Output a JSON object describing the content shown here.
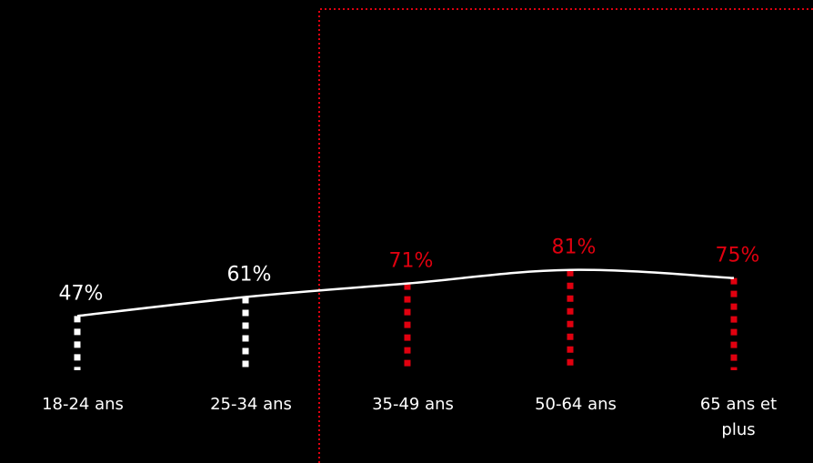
{
  "chart_data": {
    "type": "line",
    "categories": [
      "18-24 ans",
      "25-34 ans",
      "35-49 ans",
      "50-64 ans",
      "65 ans et plus"
    ],
    "category_lines": [
      [
        "18-24 ans"
      ],
      [
        "25-34 ans"
      ],
      [
        "35-49 ans"
      ],
      [
        "50-64 ans"
      ],
      [
        "65 ans et",
        "plus"
      ]
    ],
    "values": [
      47,
      61,
      71,
      81,
      75
    ],
    "value_labels": [
      "47%",
      "61%",
      "71%",
      "81%",
      "75%"
    ],
    "highlighted": [
      false,
      false,
      true,
      true,
      true
    ],
    "title": "",
    "xlabel": "",
    "ylabel": "",
    "ylim": [
      0,
      81
    ],
    "grid": false,
    "legend": "none",
    "colors": {
      "background": "#000000",
      "line": "#ffffff",
      "normal": "#ffffff",
      "highlight": "#e0000f",
      "frame": "#e0000f"
    }
  }
}
